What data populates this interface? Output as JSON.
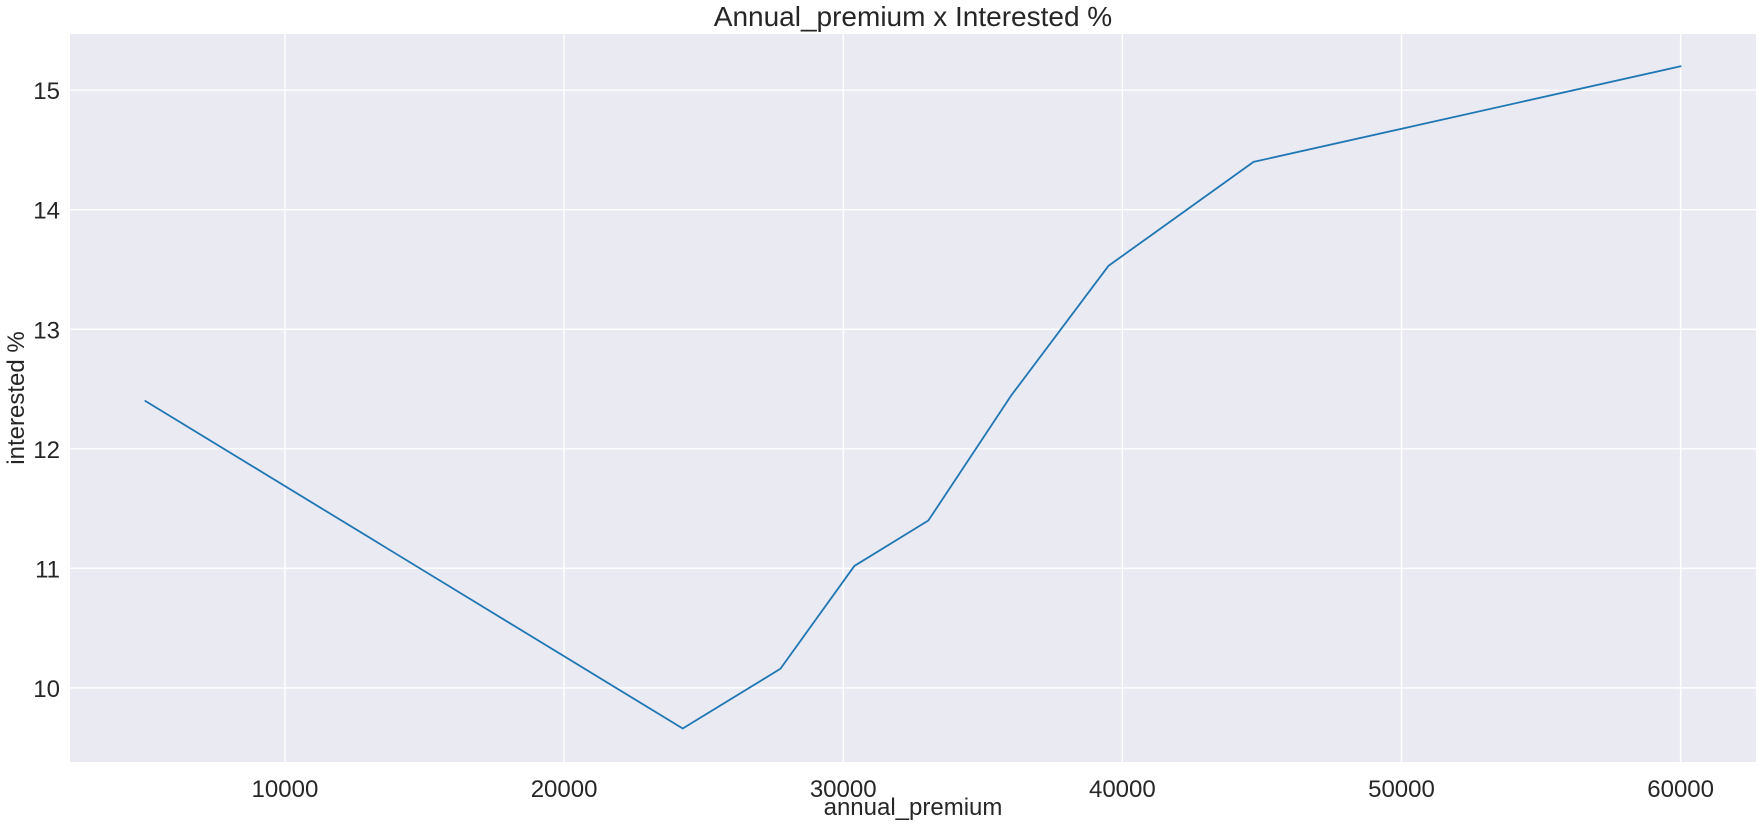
{
  "chart_data": {
    "type": "line",
    "title": "Annual_premium x Interested %",
    "xlabel": "annual_premium",
    "ylabel": "interested %",
    "xlim": [
      2300,
      62700
    ],
    "ylim": [
      9.38,
      15.47
    ],
    "xticks": [
      10000,
      20000,
      30000,
      40000,
      50000,
      60000
    ],
    "yticks": [
      10,
      11,
      12,
      13,
      14,
      15
    ],
    "grid": true,
    "legend": "none",
    "colors": {
      "plot_background": "#eaeaf2",
      "grid": "#ffffff",
      "line": "#1f77b4",
      "text": "#262626"
    },
    "series": [
      {
        "x": [
          5000,
          24250,
          27750,
          30400,
          33050,
          36000,
          39500,
          44700,
          60000
        ],
        "y": [
          12.4,
          9.66,
          10.16,
          11.02,
          11.4,
          12.44,
          13.53,
          14.4,
          15.2
        ]
      }
    ]
  }
}
